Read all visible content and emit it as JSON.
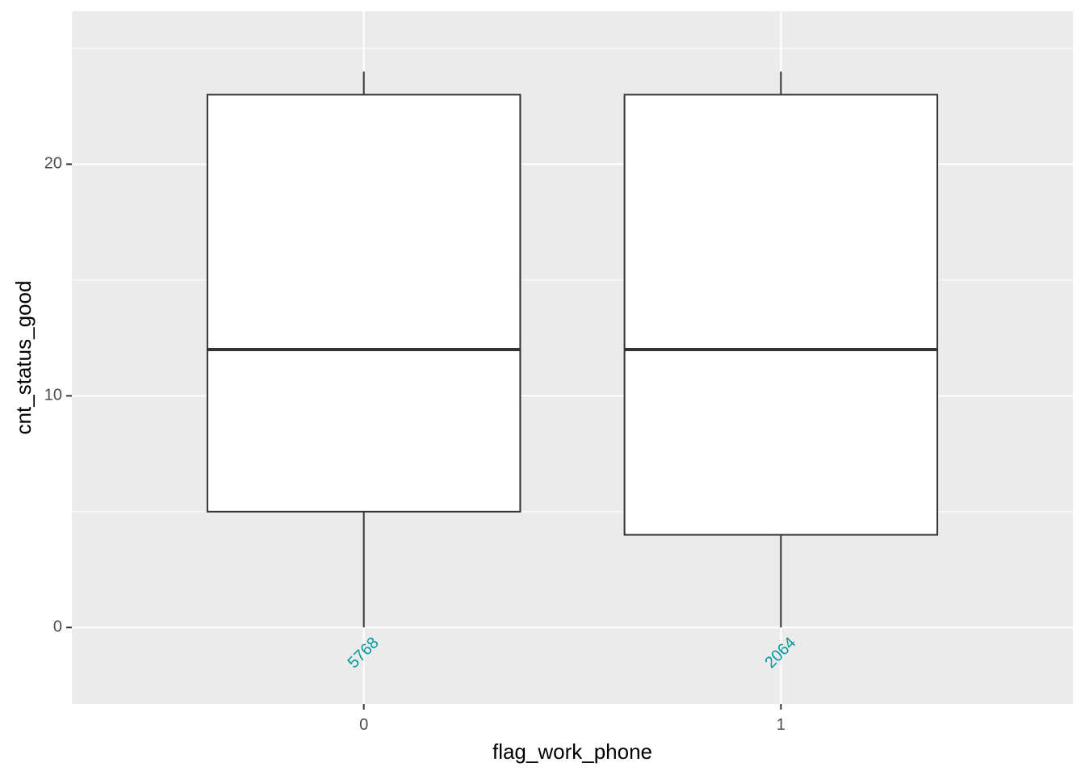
{
  "chart_data": {
    "type": "boxplot",
    "xlabel": "flag_work_phone",
    "ylabel": "cnt_status_good",
    "categories": [
      "0",
      "1"
    ],
    "ylim": [
      -3.3,
      26.6
    ],
    "yticks": [
      0,
      10,
      20
    ],
    "y_minor_ticks": [
      5,
      15,
      25
    ],
    "grid": true,
    "panel_background": "#ebebeb",
    "grid_color": "#ffffff",
    "box_fill": "#ffffff",
    "box_stroke": "#333333",
    "count_label_color": "#00999c",
    "boxes": [
      {
        "category": "0",
        "min": 0,
        "q1": 5,
        "median": 12,
        "q3": 23,
        "max": 24,
        "count_label": "5768"
      },
      {
        "category": "1",
        "min": 0,
        "q1": 4,
        "median": 12,
        "q3": 23,
        "max": 24,
        "count_label": "2064"
      }
    ]
  }
}
